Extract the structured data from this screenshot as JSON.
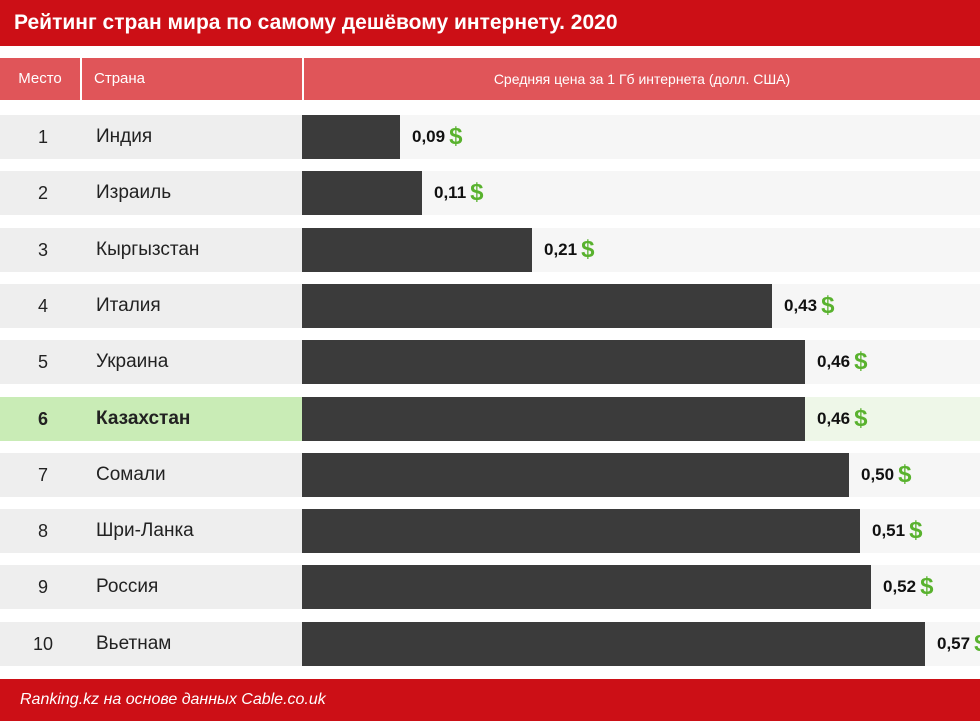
{
  "title": "Рейтинг стран мира по самому дешёвому интернету. 2020",
  "headers": {
    "rank": "Место",
    "country": "Страна",
    "price": "Средняя цена за 1 Гб интернета (долл. США)"
  },
  "currency_symbol": "$",
  "footer": "Ranking.kz на основе данных Cable.co.uk",
  "colors": {
    "title_bar": "#cc0f16",
    "header": "#e05559",
    "bar": "#3b3b3b",
    "dollar": "#59b22e",
    "highlight": "#c9ecb6"
  },
  "highlighted_country": "Казахстан",
  "chart_data": {
    "type": "bar",
    "orientation": "horizontal",
    "title": "Рейтинг стран мира по самому дешёвому интернету. 2020",
    "ylabel": "Средняя цена за 1 Гб интернета (долл. США)",
    "ranks": [
      "1",
      "2",
      "3",
      "4",
      "5",
      "6",
      "7",
      "8",
      "9",
      "10"
    ],
    "categories": [
      "Индия",
      "Израиль",
      "Кыргызстан",
      "Италия",
      "Украина",
      "Казахстан",
      "Сомали",
      "Шри-Ланка",
      "Россия",
      "Вьетнам"
    ],
    "values": [
      0.09,
      0.11,
      0.21,
      0.43,
      0.46,
      0.46,
      0.5,
      0.51,
      0.52,
      0.57
    ],
    "value_labels": [
      "0,09",
      "0,11",
      "0,21",
      "0,43",
      "0,46",
      "0,46",
      "0,50",
      "0,51",
      "0,52",
      "0,57"
    ],
    "xlim": [
      0,
      0.62
    ]
  }
}
